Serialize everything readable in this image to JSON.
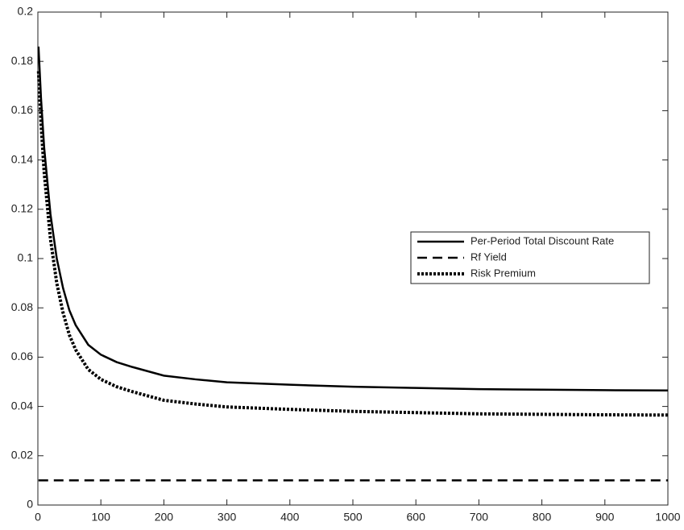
{
  "chart_data": {
    "type": "line",
    "x": [
      1,
      5,
      10,
      20,
      30,
      40,
      50,
      60,
      80,
      100,
      125,
      150,
      200,
      250,
      300,
      400,
      500,
      600,
      700,
      800,
      900,
      1000
    ],
    "series": [
      {
        "name": "Per-Period Total Discount Rate",
        "color": "#000000",
        "dash": "solid",
        "values": [
          0.186,
          0.165,
          0.145,
          0.118,
          0.1,
          0.088,
          0.079,
          0.073,
          0.065,
          0.061,
          0.058,
          0.056,
          0.0525,
          0.051,
          0.0498,
          0.0488,
          0.048,
          0.0475,
          0.047,
          0.0468,
          0.0466,
          0.0465
        ]
      },
      {
        "name": "Rf Yield",
        "color": "#000000",
        "dash": "dashed",
        "values": [
          0.01,
          0.01,
          0.01,
          0.01,
          0.01,
          0.01,
          0.01,
          0.01,
          0.01,
          0.01,
          0.01,
          0.01,
          0.01,
          0.01,
          0.01,
          0.01,
          0.01,
          0.01,
          0.01,
          0.01,
          0.01,
          0.01
        ]
      },
      {
        "name": "Risk Premium",
        "color": "#000000",
        "dash": "dotted",
        "values": [
          0.176,
          0.155,
          0.135,
          0.108,
          0.09,
          0.078,
          0.069,
          0.063,
          0.055,
          0.051,
          0.048,
          0.046,
          0.0425,
          0.041,
          0.0398,
          0.0388,
          0.038,
          0.0375,
          0.037,
          0.0368,
          0.0366,
          0.0365
        ]
      }
    ],
    "xlim": [
      0,
      1000
    ],
    "xticks": [
      0,
      100,
      200,
      300,
      400,
      500,
      600,
      700,
      800,
      900,
      1000
    ],
    "ylim": [
      0,
      0.2
    ],
    "yticks": [
      0,
      0.02,
      0.04,
      0.06,
      0.08,
      0.1,
      0.12,
      0.14,
      0.16,
      0.18,
      0.2
    ],
    "grid": false,
    "legend": "right"
  }
}
